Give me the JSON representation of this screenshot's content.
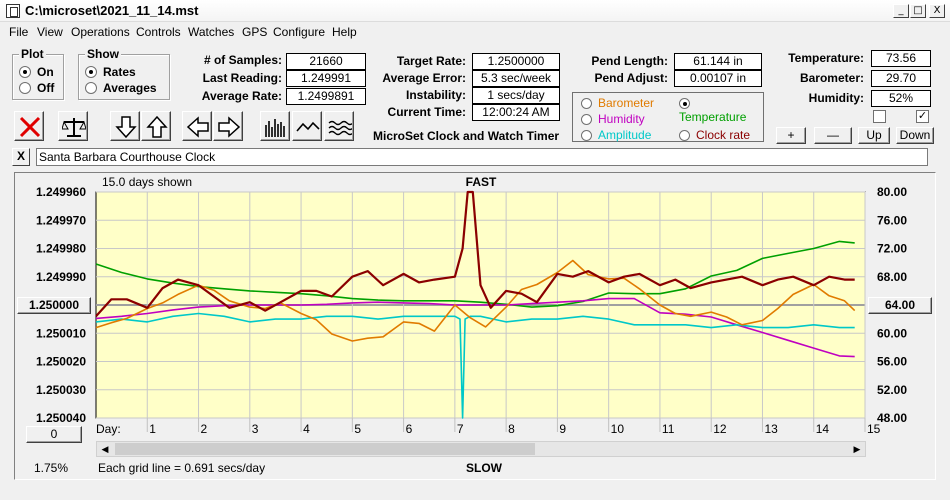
{
  "window": {
    "title": "C:\\microset\\2021_11_14.mst",
    "min_glyph": "_",
    "max_glyph": "□",
    "close_glyph": "X"
  },
  "menu": [
    "File",
    "View",
    "Operations",
    "Controls",
    "Watches",
    "GPS",
    "Configure",
    "Help"
  ],
  "plot_group": {
    "title": "Plot",
    "on": "On",
    "off": "Off",
    "selected": "On"
  },
  "show_group": {
    "title": "Show",
    "rates": "Rates",
    "averages": "Averages",
    "selected": "Rates"
  },
  "stats": {
    "samples_label": "# of Samples:",
    "samples": "21660",
    "last_reading_label": "Last Reading:",
    "last_reading": "1.249991",
    "average_rate_label": "Average Rate:",
    "average_rate": "1.2499891",
    "target_rate_label": "Target Rate:",
    "target_rate": "1.2500000",
    "average_error_label": "Average Error:",
    "average_error": "5.3 sec/week",
    "instability_label": "Instability:",
    "instability": "1 secs/day",
    "current_time_label": "Current Time:",
    "current_time": "12:00:24 AM",
    "pend_length_label": "Pend Length:",
    "pend_length": "61.144 in",
    "pend_adjust_label": "Pend Adjust:",
    "pend_adjust": "0.00107 in",
    "temperature_label": "Temperature:",
    "temperature": "73.56",
    "barometer_label": "Barometer:",
    "barometer": "29.70",
    "humidity_label": "Humidity:",
    "humidity": "52%"
  },
  "app_name": "MicroSet Clock and Watch Timer",
  "toolbar": [
    "stop-icon",
    "balance-scale-icon",
    "arrow-down-icon",
    "arrow-up-icon",
    "arrow-left-icon",
    "arrow-right-icon",
    "histogram-icon",
    "line-wave-icon",
    "multi-wave-icon"
  ],
  "sources": {
    "barometer": "Barometer",
    "temperature": "Temperature",
    "humidity": "Humidity",
    "amplitude": "Amplitude",
    "clock_rate": "Clock rate",
    "selected": "Temperature",
    "colors": {
      "barometer": "#e07b00",
      "temperature": "#00a000",
      "humidity": "#c000c0",
      "amplitude": "#00c8c8",
      "clock_rate": "#8b0000"
    }
  },
  "adjust_buttons": {
    "plus": "+",
    "minus": "—",
    "up": "Up",
    "down": "Down"
  },
  "checkboxes": [
    {
      "checked": false
    },
    {
      "checked": true,
      "glyph": "✓"
    }
  ],
  "clock_name": "Santa Barbara Courthouse Clock",
  "close_clock_glyph": "X",
  "chart": {
    "days_shown": "15.0 days shown",
    "top_label": "FAST",
    "bottom_label": "SLOW",
    "grid_note": "Each grid line = 0.691 secs/day",
    "percent": "1.75%",
    "day_axis_label": "Day:",
    "center_left_value": "1.250000",
    "center_right_value": "64.00",
    "zero_button": "0"
  },
  "chart_data": {
    "type": "line",
    "xlabel": "Day:",
    "xlim": [
      0,
      15
    ],
    "x_ticks": [
      "1",
      "2",
      "3",
      "4",
      "5",
      "6",
      "7",
      "8",
      "9",
      "10",
      "11",
      "12",
      "13",
      "14",
      "15"
    ],
    "y_left_ticks": [
      "1.249960",
      "1.249970",
      "1.249980",
      "1.249990",
      "1.250000",
      "1.250010",
      "1.250020",
      "1.250030",
      "1.250040"
    ],
    "y_left_range": [
      1.24996,
      1.25004
    ],
    "y_right_ticks": [
      "80.00",
      "76.00",
      "72.00",
      "68.00",
      "64.00",
      "60.00",
      "56.00",
      "52.00",
      "48.00"
    ],
    "y_right_range": [
      80,
      48
    ],
    "grid": true,
    "series": [
      {
        "name": "Temperature",
        "axis": "right",
        "color": "#00a000",
        "x": [
          0,
          0.5,
          1,
          1.5,
          2,
          2.5,
          3,
          3.5,
          4,
          4.5,
          5,
          5.5,
          6,
          6.5,
          7,
          7.5,
          8,
          8.5,
          9,
          9.5,
          10,
          10.5,
          11,
          11.5,
          12,
          12.5,
          13,
          13.5,
          14,
          14.5,
          14.8
        ],
        "y": [
          69.8,
          68.6,
          67.7,
          67.1,
          66.6,
          66.3,
          66.0,
          65.8,
          65.6,
          65.3,
          64.9,
          64.7,
          64.6,
          64.6,
          64.6,
          64.4,
          64.1,
          63.7,
          63.9,
          64.5,
          65.7,
          65.6,
          65.6,
          66.3,
          68.1,
          68.9,
          70.6,
          71.3,
          72.0,
          73.0,
          72.8
        ]
      },
      {
        "name": "Humidity",
        "axis": "right",
        "color": "#c000c0",
        "x": [
          0,
          0.5,
          1,
          1.5,
          2,
          2.5,
          3,
          3.5,
          4,
          4.5,
          5,
          5.5,
          6,
          6.5,
          7,
          7.5,
          8,
          8.5,
          9,
          9.5,
          10,
          10.5,
          11,
          11.5,
          12,
          12.5,
          13,
          13.5,
          14,
          14.5,
          14.8
        ],
        "y": [
          62.1,
          62.4,
          62.8,
          63.3,
          63.7,
          63.9,
          64.0,
          64.0,
          64.0,
          64.1,
          64.3,
          64.4,
          64.3,
          64.2,
          64.0,
          64.0,
          64.0,
          64.2,
          64.4,
          64.6,
          64.9,
          64.9,
          62.9,
          62.7,
          62.3,
          61.2,
          60.1,
          59.0,
          57.9,
          56.8,
          56.7
        ]
      },
      {
        "name": "Amplitude",
        "axis": "left",
        "color": "#00c8c8",
        "x": [
          0,
          0.5,
          1,
          1.5,
          2,
          2.5,
          3,
          3.5,
          4,
          4.5,
          5,
          5.5,
          6,
          6.5,
          7,
          7.1,
          7.15,
          7.2,
          7.3,
          7.5,
          8,
          8.5,
          9,
          9.5,
          10,
          10.5,
          11,
          11.5,
          12,
          12.5,
          13,
          13.5,
          14,
          14.5,
          14.8
        ],
        "y": [
          1.250006,
          1.250005,
          1.250006,
          1.250004,
          1.250003,
          1.250004,
          1.250006,
          1.250005,
          1.250005,
          1.250004,
          1.250004,
          1.250005,
          1.250004,
          1.250004,
          1.250004,
          1.250005,
          1.25004,
          1.250005,
          1.250004,
          1.250004,
          1.250006,
          1.250005,
          1.250005,
          1.250004,
          1.250005,
          1.250007,
          1.250007,
          1.250007,
          1.250008,
          1.250007,
          1.250008,
          1.250008,
          1.250007,
          1.250008,
          1.250008
        ]
      },
      {
        "name": "Barometer",
        "axis": "right",
        "color": "#e07b00",
        "x": [
          0,
          0.3,
          0.6,
          1,
          1.3,
          1.6,
          2,
          2.3,
          2.6,
          3,
          3.3,
          3.6,
          4,
          4.3,
          4.6,
          5,
          5.3,
          5.6,
          6,
          6.3,
          6.6,
          7,
          7.3,
          7.6,
          8,
          8.3,
          8.6,
          9,
          9.3,
          9.6,
          10,
          10.3,
          10.6,
          11,
          11.3,
          11.6,
          12,
          12.3,
          12.6,
          13,
          13.3,
          13.6,
          14,
          14.3,
          14.6,
          14.8
        ],
        "y": [
          60.8,
          61.5,
          62.1,
          63.5,
          64.3,
          65.5,
          66.8,
          66.1,
          64.6,
          63.7,
          63.5,
          64.3,
          62.8,
          61.9,
          59.9,
          58.9,
          59.3,
          59.5,
          61.6,
          61.4,
          60.3,
          64.0,
          62.2,
          60.9,
          63.7,
          66.2,
          66.9,
          68.6,
          70.3,
          68.3,
          67.7,
          67.8,
          66.3,
          64.0,
          62.8,
          62.4,
          63.0,
          62.3,
          61.2,
          61.8,
          63.5,
          65.5,
          66.9,
          65.3,
          64.6,
          63.2
        ]
      },
      {
        "name": "Clock rate",
        "axis": "left",
        "color": "#8b0000",
        "x": [
          0,
          0.3,
          0.6,
          1,
          1.3,
          1.6,
          2,
          2.3,
          2.6,
          3,
          3.3,
          3.6,
          4,
          4.3,
          4.6,
          5,
          5.3,
          5.6,
          6,
          6.3,
          6.6,
          7,
          7.15,
          7.25,
          7.35,
          7.5,
          7.7,
          8,
          8.3,
          8.6,
          9,
          9.3,
          9.6,
          10,
          10.3,
          10.6,
          11,
          11.3,
          11.6,
          12,
          12.3,
          12.6,
          13,
          13.3,
          13.6,
          14,
          14.3,
          14.6,
          14.8
        ],
        "y": [
          1.250004,
          1.249998,
          1.249998,
          1.250001,
          1.249994,
          1.249991,
          1.249993,
          1.249997,
          1.250001,
          1.249999,
          1.250002,
          1.249999,
          1.249995,
          1.249995,
          1.249997,
          1.24999,
          1.249988,
          1.249993,
          1.249989,
          1.249992,
          1.249991,
          1.24999,
          1.24998,
          1.249955,
          1.24996,
          1.249993,
          1.250001,
          1.249995,
          1.249996,
          1.249999,
          1.249989,
          1.24999,
          1.249988,
          1.249992,
          1.24999,
          1.249989,
          1.249993,
          1.249991,
          1.249994,
          1.249992,
          1.249991,
          1.24999,
          1.249993,
          1.249991,
          1.24999,
          1.249993,
          1.24999,
          1.249991,
          1.249991
        ]
      }
    ]
  }
}
